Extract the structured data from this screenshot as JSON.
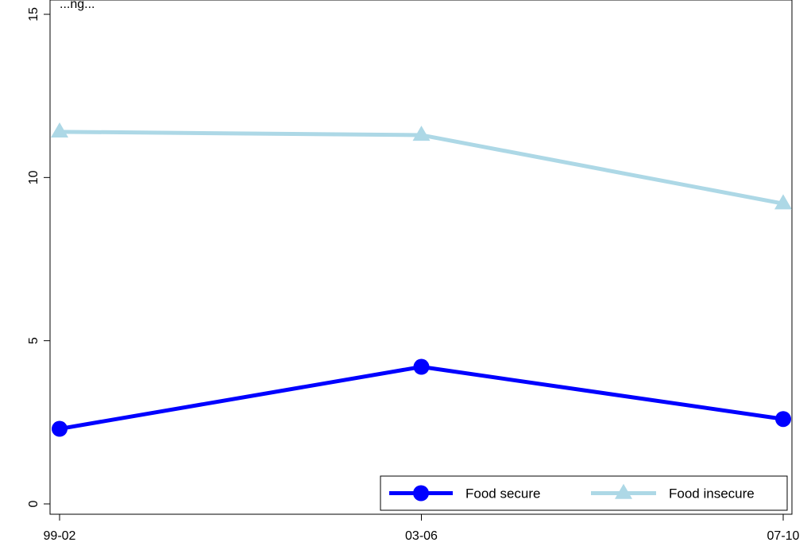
{
  "chart_data": {
    "type": "line",
    "title_partial": "...ng...",
    "categories": [
      "99-02",
      "03-06",
      "07-10"
    ],
    "series": [
      {
        "name": "Food secure",
        "values": [
          2.3,
          4.2,
          2.6
        ],
        "color": "#0000ff",
        "marker": "circle"
      },
      {
        "name": "Food insecure",
        "values": [
          11.4,
          11.3,
          9.2
        ],
        "color": "#add8e6",
        "marker": "triangle"
      }
    ],
    "ylim": [
      0,
      15
    ],
    "yticks": [
      0,
      5,
      10,
      15
    ],
    "xlabel": "",
    "ylabel": "",
    "grid": false,
    "legend_position": "bottom-right"
  }
}
